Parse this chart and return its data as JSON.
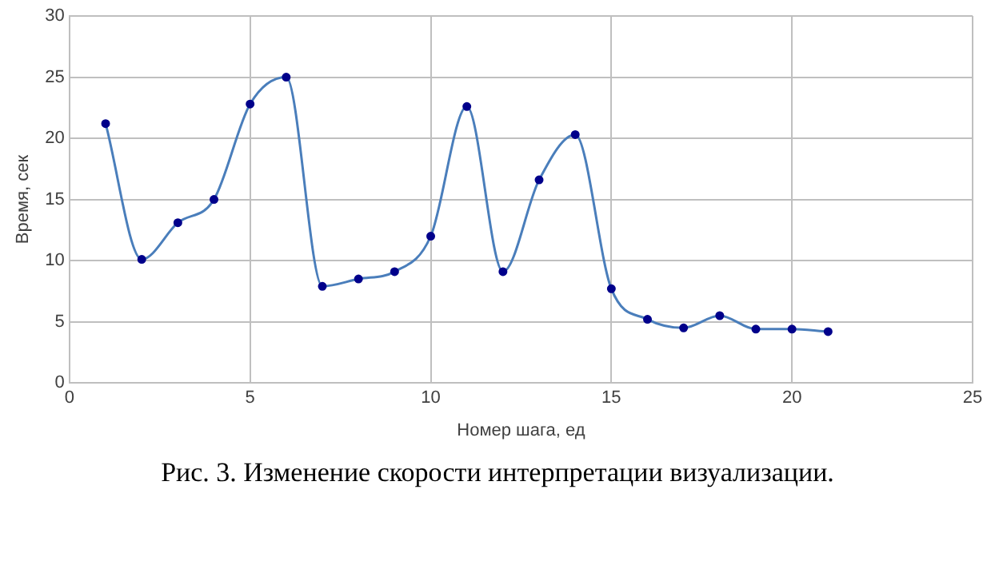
{
  "chart_data": {
    "type": "line",
    "xlabel": "Номер шага, ед",
    "ylabel": "Время, сек",
    "annotations": [
      "Рис. 3. Изменение скорости интерпретации визуализации."
    ],
    "x": [
      1,
      2,
      3,
      4,
      5,
      6,
      7,
      8,
      9,
      10,
      11,
      12,
      13,
      14,
      15,
      16,
      17,
      18,
      19,
      20,
      21
    ],
    "series": [
      {
        "color": "#4a7ebb",
        "values": [
          21.2,
          10.1,
          13.1,
          15,
          22.8,
          25,
          7.9,
          8.5,
          9.1,
          12,
          22.6,
          9.1,
          16.6,
          20.3,
          7.7,
          5.2,
          4.5,
          5.5,
          4.4,
          4.4,
          4.2
        ]
      }
    ],
    "xlim": [
      0,
      25
    ],
    "xticks": [
      0,
      5,
      10,
      15,
      20,
      25
    ],
    "ylim": [
      0,
      30
    ],
    "yticks": [
      0,
      5,
      10,
      15,
      20,
      25,
      30
    ],
    "grid": true,
    "legend": false,
    "marker": "circle",
    "line_style": "solid"
  }
}
